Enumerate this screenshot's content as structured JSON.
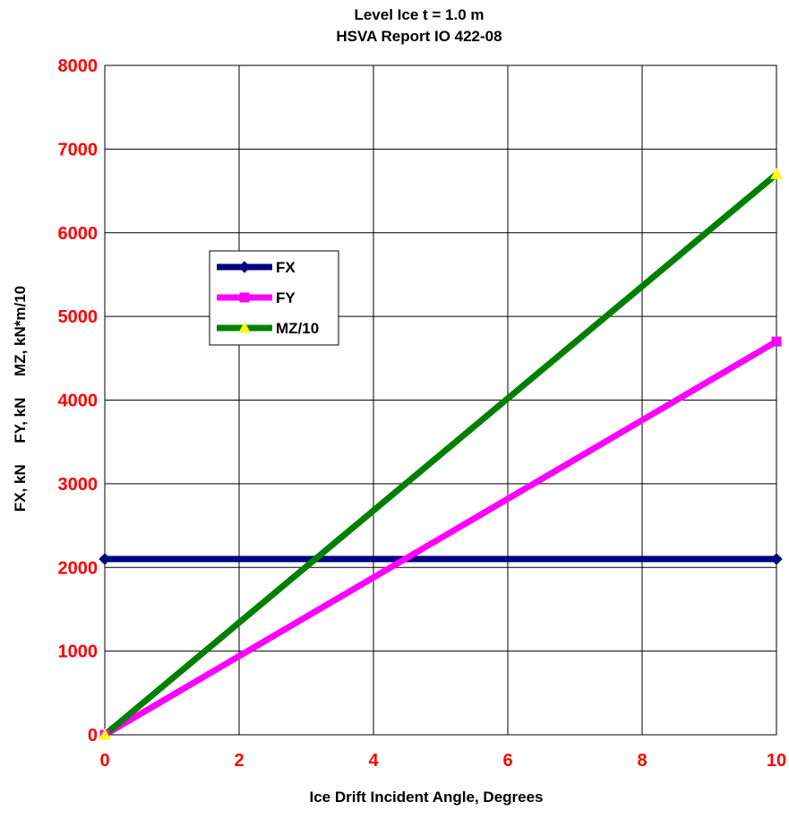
{
  "chart_data": {
    "type": "line",
    "title": "Level Ice  t = 1.0 m",
    "subtitle": "HSVA Report IO 422-08",
    "xlabel": "Ice Drift Incident Angle, Degrees",
    "ylabel": "FX, kN     FY, kN     MZ, kN*m/10",
    "xlim": [
      0,
      10
    ],
    "ylim": [
      0,
      8000
    ],
    "x_ticks": [
      "0",
      "2",
      "4",
      "6",
      "8",
      "10"
    ],
    "y_ticks": [
      "0",
      "1000",
      "2000",
      "3000",
      "4000",
      "5000",
      "6000",
      "7000",
      "8000"
    ],
    "grid": true,
    "legend_position": "upper-left",
    "tick_label_color": "#ff0000",
    "series": [
      {
        "name": "FX",
        "color": "#000080",
        "marker": "diamond",
        "x": [
          0,
          10
        ],
        "y": [
          2100,
          2100
        ]
      },
      {
        "name": "FY",
        "color": "#ff00ff",
        "marker": "square",
        "x": [
          0,
          10
        ],
        "y": [
          0,
          4700
        ]
      },
      {
        "name": "MZ/10",
        "color": "#008000",
        "marker": "triangle",
        "marker_color": "#ffff00",
        "x": [
          0,
          10
        ],
        "y": [
          0,
          6700
        ]
      }
    ]
  }
}
